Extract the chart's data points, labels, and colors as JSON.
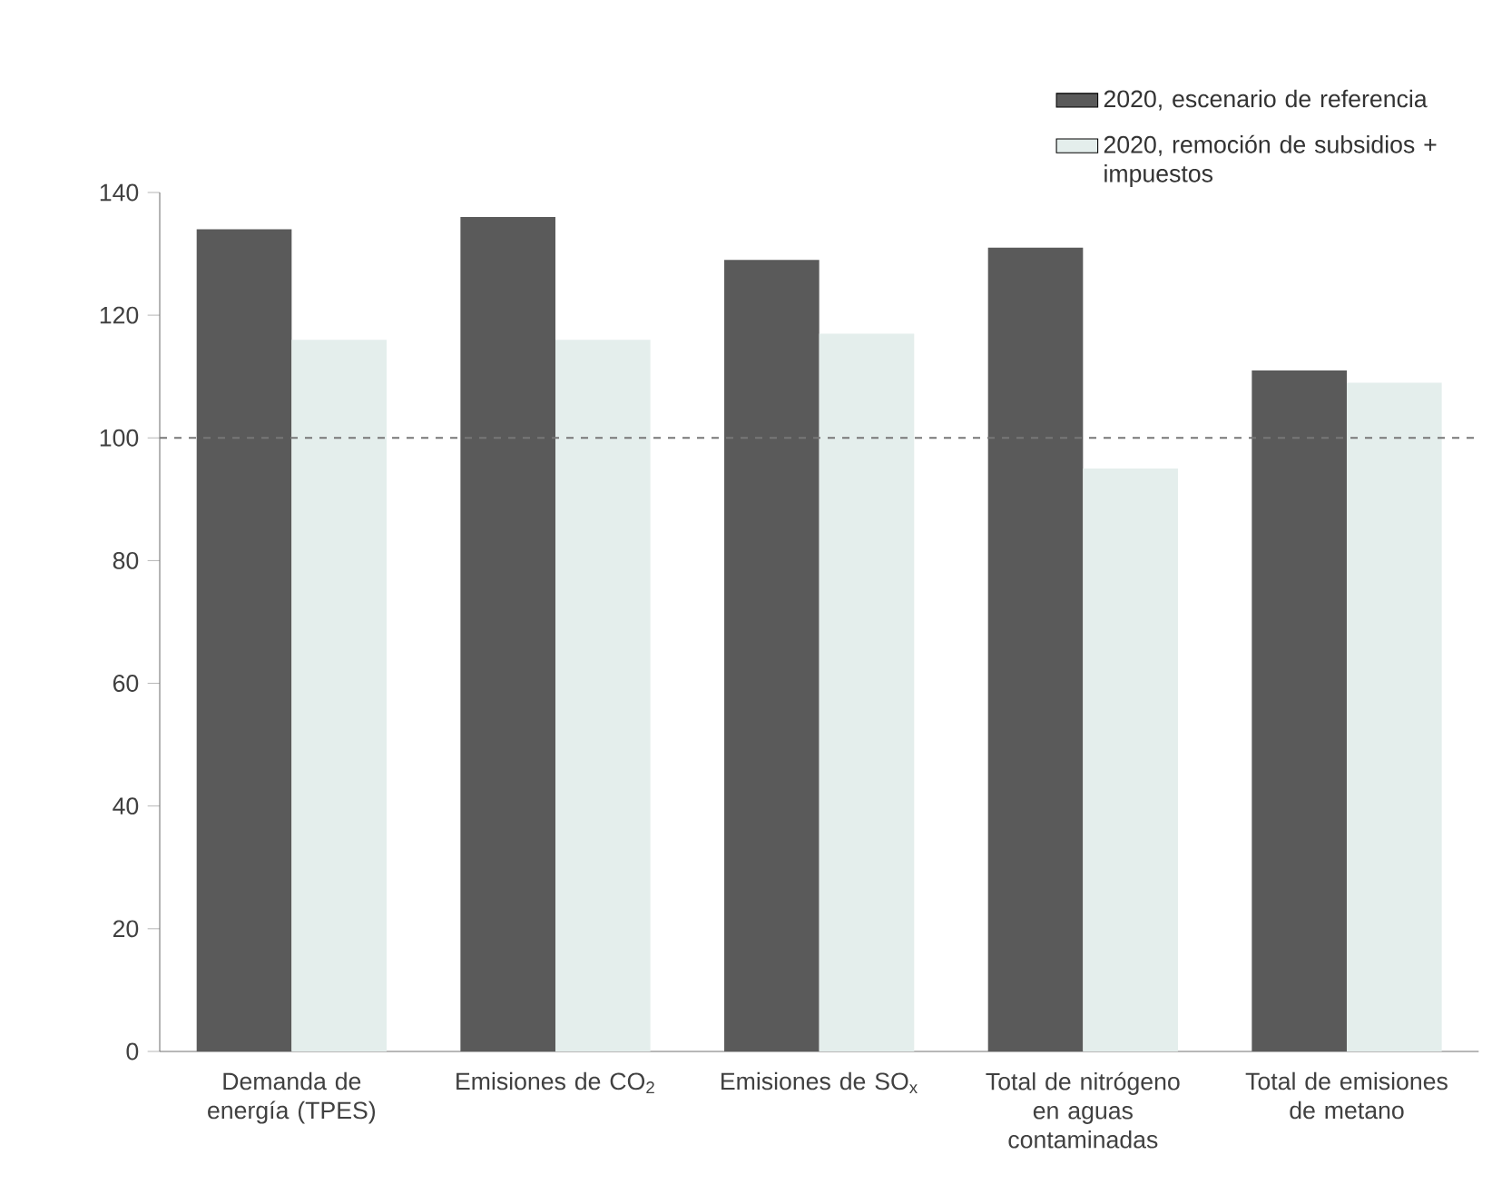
{
  "chart_data": {
    "type": "bar",
    "categories": [
      "Demanda de energía (TPES)",
      "Emisiones de CO$_{2}$",
      "Emisiones de SO$_{x}$",
      "Total de nitrógeno en aguas contaminadas",
      "Total de emisiones de metano"
    ],
    "series": [
      {
        "name": "2020, escenario de referencia",
        "color": "#5a5a5a",
        "values": [
          134,
          136,
          129,
          131,
          111
        ]
      },
      {
        "name": "2020, remoción de subsidios + impuestos",
        "color": "#e4eeec",
        "values": [
          116,
          116,
          117,
          95,
          109
        ]
      }
    ],
    "ylim": [
      0,
      140
    ],
    "yticks": [
      0,
      20,
      40,
      60,
      80,
      100,
      120,
      140
    ],
    "ref_lines": [
      {
        "axis": "y",
        "value": 100,
        "line_style": "dashed",
        "color": "#777777"
      }
    ],
    "grid": false,
    "legend": "top right"
  }
}
